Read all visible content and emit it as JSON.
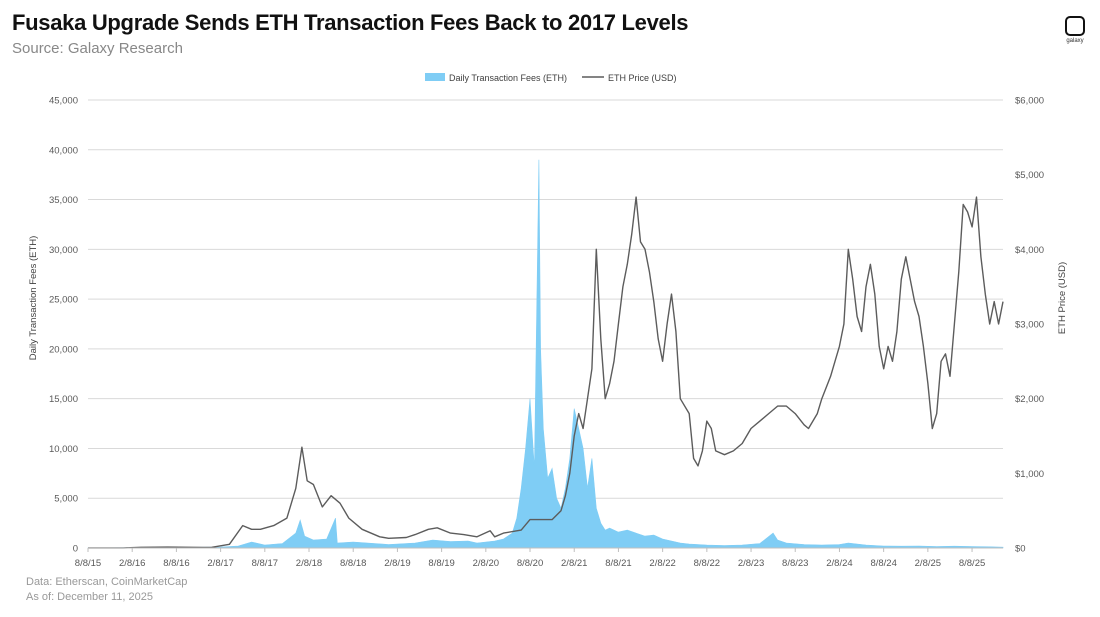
{
  "header": {
    "title": "Fusaka Upgrade Sends ETH Transaction Fees Back to 2017 Levels",
    "subtitle": "Source: Galaxy Research",
    "logo_text": "galaxy"
  },
  "footer": {
    "data_source": "Data: Etherscan, CoinMarketCap",
    "as_of": "As of: December 11, 2025"
  },
  "colors": {
    "fees": "#7fcdf5",
    "price": "#5c5c5c",
    "grid": "#d9d9d9",
    "tick": "#595959"
  },
  "chart_data": {
    "type": "area",
    "title": "Fusaka Upgrade Sends ETH Transaction Fees Back to 2017 Levels",
    "subtitle": "Source: Galaxy Research",
    "ylabel": "Daily Transaction Fees (ETH)",
    "y2label": "ETH Price (USD)",
    "ylim": [
      0,
      45000
    ],
    "y2lim": [
      0,
      6000
    ],
    "yticks": [
      0,
      5000,
      10000,
      15000,
      20000,
      25000,
      30000,
      35000,
      40000,
      45000
    ],
    "ytick_labels": [
      "0",
      "5,000",
      "10,000",
      "15,000",
      "20,000",
      "25,000",
      "30,000",
      "35,000",
      "40,000",
      "45,000"
    ],
    "y2ticks": [
      0,
      1000,
      2000,
      3000,
      4000,
      5000,
      6000
    ],
    "y2tick_labels": [
      "$0",
      "$1,000",
      "$2,000",
      "$3,000",
      "$4,000",
      "$5,000",
      "$6,000"
    ],
    "xlim": [
      2015.6,
      2025.95
    ],
    "x_tick_positions": [
      2015.6,
      2016.1,
      2016.6,
      2017.1,
      2017.6,
      2018.1,
      2018.6,
      2019.1,
      2019.6,
      2020.1,
      2020.6,
      2021.1,
      2021.6,
      2022.1,
      2022.6,
      2023.1,
      2023.6,
      2024.1,
      2024.6,
      2025.1,
      2025.6
    ],
    "x_tick_labels": [
      "8/8/15",
      "2/8/16",
      "8/8/16",
      "2/8/17",
      "8/8/17",
      "2/8/18",
      "8/8/18",
      "2/8/19",
      "8/8/19",
      "2/8/20",
      "8/8/20",
      "2/8/21",
      "8/8/21",
      "2/8/22",
      "8/8/22",
      "2/8/23",
      "8/8/23",
      "2/8/24",
      "8/8/24",
      "2/8/25",
      "8/8/25"
    ],
    "legend_position": "top-center",
    "grid": true,
    "series": [
      {
        "name": "Daily Transaction Fees (ETH)",
        "axis": "left",
        "kind": "area",
        "x": [
          2015.6,
          2016.5,
          2017.1,
          2017.3,
          2017.45,
          2017.6,
          2017.8,
          2017.95,
          2018.0,
          2018.05,
          2018.15,
          2018.3,
          2018.4,
          2018.42,
          2018.6,
          2019.0,
          2019.3,
          2019.5,
          2019.7,
          2019.9,
          2020.0,
          2020.2,
          2020.3,
          2020.4,
          2020.45,
          2020.5,
          2020.55,
          2020.6,
          2020.65,
          2020.7,
          2020.72,
          2020.75,
          2020.8,
          2020.85,
          2020.9,
          2020.95,
          2021.0,
          2021.05,
          2021.1,
          2021.15,
          2021.2,
          2021.25,
          2021.3,
          2021.35,
          2021.4,
          2021.45,
          2021.5,
          2021.6,
          2021.7,
          2021.8,
          2021.9,
          2022.0,
          2022.1,
          2022.2,
          2022.3,
          2022.4,
          2022.5,
          2022.6,
          2022.8,
          2023.0,
          2023.2,
          2023.35,
          2023.4,
          2023.5,
          2023.7,
          2023.9,
          2024.1,
          2024.2,
          2024.4,
          2024.6,
          2024.8,
          2025.0,
          2025.2,
          2025.4,
          2025.6,
          2025.8,
          2025.95
        ],
        "values": [
          10,
          50,
          100,
          200,
          600,
          300,
          450,
          1500,
          2800,
          1200,
          800,
          900,
          3000,
          500,
          600,
          350,
          500,
          800,
          650,
          700,
          500,
          700,
          900,
          1500,
          3000,
          6000,
          10000,
          15000,
          8000,
          39000,
          20000,
          12000,
          7000,
          8000,
          5000,
          4000,
          6000,
          9000,
          14000,
          12000,
          10000,
          6000,
          9000,
          4000,
          2500,
          1800,
          2000,
          1600,
          1800,
          1500,
          1200,
          1300,
          900,
          700,
          500,
          400,
          350,
          300,
          250,
          300,
          450,
          1500,
          800,
          500,
          350,
          300,
          350,
          500,
          300,
          200,
          180,
          200,
          150,
          180,
          150,
          120,
          80
        ]
      },
      {
        "name": "ETH Price (USD)",
        "axis": "right",
        "kind": "line",
        "x": [
          2015.6,
          2016.0,
          2016.2,
          2016.5,
          2016.9,
          2017.0,
          2017.2,
          2017.35,
          2017.45,
          2017.55,
          2017.7,
          2017.85,
          2017.95,
          2018.02,
          2018.08,
          2018.15,
          2018.25,
          2018.35,
          2018.45,
          2018.55,
          2018.7,
          2018.9,
          2019.0,
          2019.2,
          2019.3,
          2019.45,
          2019.55,
          2019.7,
          2019.85,
          2020.0,
          2020.15,
          2020.2,
          2020.3,
          2020.5,
          2020.6,
          2020.7,
          2020.85,
          2020.95,
          2021.0,
          2021.05,
          2021.1,
          2021.15,
          2021.2,
          2021.25,
          2021.3,
          2021.35,
          2021.4,
          2021.45,
          2021.5,
          2021.55,
          2021.6,
          2021.65,
          2021.7,
          2021.75,
          2021.8,
          2021.85,
          2021.9,
          2021.95,
          2022.0,
          2022.05,
          2022.1,
          2022.15,
          2022.2,
          2022.25,
          2022.3,
          2022.4,
          2022.45,
          2022.5,
          2022.55,
          2022.6,
          2022.65,
          2022.7,
          2022.8,
          2022.9,
          2023.0,
          2023.1,
          2023.2,
          2023.3,
          2023.4,
          2023.5,
          2023.6,
          2023.7,
          2023.75,
          2023.85,
          2023.9,
          2024.0,
          2024.05,
          2024.1,
          2024.15,
          2024.2,
          2024.25,
          2024.3,
          2024.35,
          2024.4,
          2024.45,
          2024.5,
          2024.55,
          2024.6,
          2024.65,
          2024.7,
          2024.75,
          2024.8,
          2024.85,
          2024.9,
          2024.95,
          2025.0,
          2025.05,
          2025.1,
          2025.15,
          2025.2,
          2025.25,
          2025.3,
          2025.35,
          2025.4,
          2025.45,
          2025.5,
          2025.55,
          2025.6,
          2025.65,
          2025.7,
          2025.75,
          2025.8,
          2025.85,
          2025.9,
          2025.95
        ],
        "values": [
          1,
          1,
          10,
          12,
          8,
          10,
          50,
          300,
          250,
          250,
          300,
          400,
          800,
          1350,
          900,
          850,
          550,
          700,
          600,
          400,
          250,
          150,
          130,
          140,
          180,
          250,
          270,
          200,
          180,
          150,
          230,
          150,
          200,
          240,
          380,
          380,
          380,
          500,
          700,
          1000,
          1500,
          1800,
          1600,
          2000,
          2400,
          4000,
          2800,
          2000,
          2200,
          2500,
          3000,
          3500,
          3800,
          4200,
          4700,
          4100,
          4000,
          3700,
          3300,
          2800,
          2500,
          3000,
          3400,
          2900,
          2000,
          1800,
          1200,
          1100,
          1300,
          1700,
          1600,
          1300,
          1250,
          1300,
          1400,
          1600,
          1700,
          1800,
          1900,
          1900,
          1800,
          1650,
          1600,
          1800,
          2000,
          2300,
          2500,
          2700,
          3000,
          4000,
          3600,
          3100,
          2900,
          3500,
          3800,
          3400,
          2700,
          2400,
          2700,
          2500,
          2900,
          3600,
          3900,
          3600,
          3300,
          3100,
          2700,
          2200,
          1600,
          1800,
          2500,
          2600,
          2300,
          3000,
          3700,
          4600,
          4500,
          4300,
          4700,
          3900,
          3400,
          3000,
          3300,
          3000,
          3300
        ]
      }
    ]
  }
}
